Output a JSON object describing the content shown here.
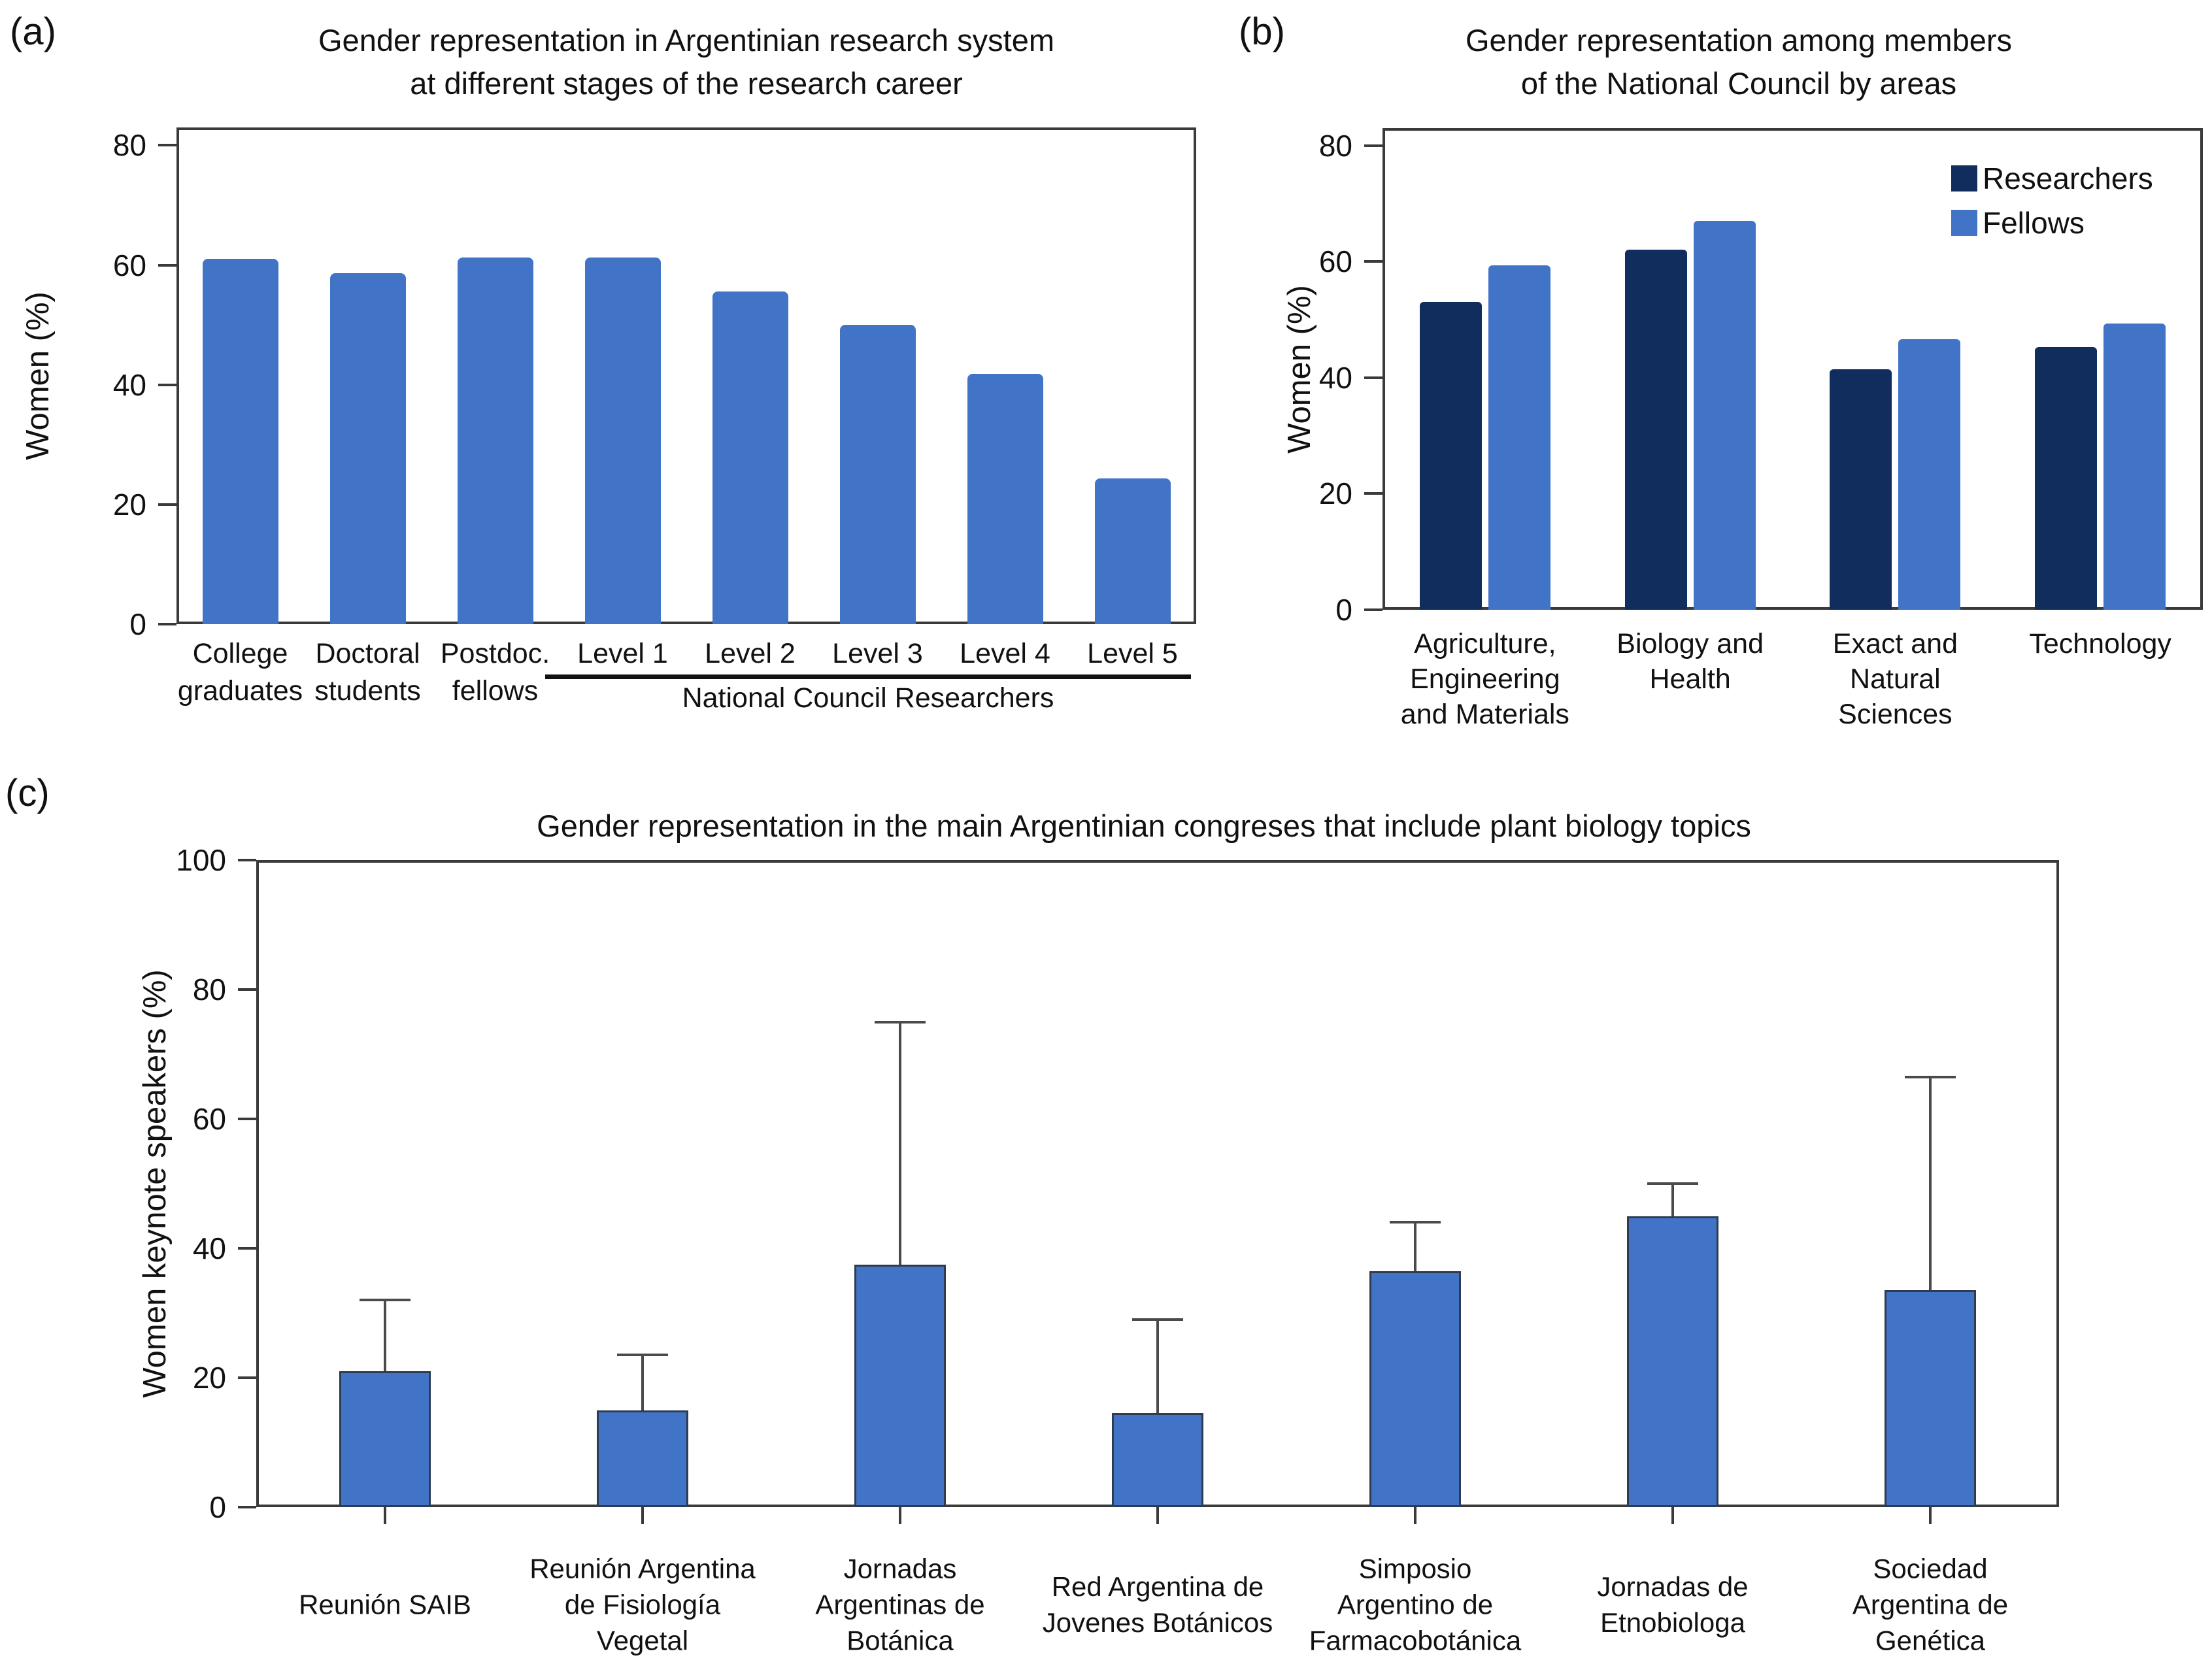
{
  "figure": {
    "panel_labels": {
      "a": "(a)",
      "b": "(b)",
      "c": "(c)"
    },
    "colors": {
      "bar_blue": "#4173C7",
      "bar_navy": "#112D5E",
      "axis": "#3A3A3A",
      "error_bar": "#4A4A4A",
      "bar_border_dark": "#2E3B50",
      "text": "#1A1A1A"
    }
  },
  "chart_data": [
    {
      "panel": "a",
      "type": "bar",
      "title_lines": [
        "Gender representation in Argentinian research system",
        "at different stages of the research career"
      ],
      "ylabel": "Women (%)",
      "ylim": [
        0,
        83
      ],
      "yticks": [
        0,
        20,
        40,
        60,
        80
      ],
      "grid": false,
      "categories": [
        [
          "College",
          "graduates"
        ],
        [
          "Doctoral",
          "students"
        ],
        [
          "Postdoc.",
          "fellows"
        ],
        [
          "Level 1"
        ],
        [
          "Level 2"
        ],
        [
          "Level 3"
        ],
        [
          "Level 4"
        ],
        [
          "Level 5"
        ]
      ],
      "values": [
        61,
        58.7,
        61.3,
        61.3,
        55.6,
        50,
        41.8,
        24.4
      ],
      "group_annotation": {
        "label": "National Council Researchers",
        "from_index": 3,
        "to_index": 7
      }
    },
    {
      "panel": "b",
      "type": "grouped-bar",
      "title_lines": [
        "Gender representation among members",
        "of the National Council by areas"
      ],
      "ylabel": "Women (%)",
      "ylim": [
        0,
        83
      ],
      "yticks": [
        0,
        20,
        40,
        60,
        80
      ],
      "grid": false,
      "legend_position": "top-right",
      "categories": [
        [
          "Agriculture,",
          "Engineering",
          "and Materials"
        ],
        [
          "Biology and",
          "Health"
        ],
        [
          "Exact and",
          "Natural",
          "Sciences"
        ],
        [
          "Technology"
        ]
      ],
      "series": [
        {
          "name": "Researchers",
          "values": [
            53,
            62,
            41.5,
            45.3
          ]
        },
        {
          "name": "Fellows",
          "values": [
            59.4,
            67,
            46.6,
            49.3
          ]
        }
      ]
    },
    {
      "panel": "c",
      "type": "bar",
      "title_lines": [
        "Gender representation in the main Argentinian congreses that include plant biology topics"
      ],
      "ylabel": "Women keynote speakers (%)",
      "ylim": [
        0,
        100
      ],
      "yticks": [
        0,
        20,
        40,
        60,
        80,
        100
      ],
      "grid": false,
      "categories": [
        [
          "Reunión SAIB"
        ],
        [
          "Reunión Argentina",
          "de Fisiología",
          "Vegetal"
        ],
        [
          "Jornadas",
          "Argentinas de",
          "Botánica"
        ],
        [
          "Red Argentina de",
          "Jovenes Botánicos"
        ],
        [
          "Simposio",
          "Argentino de",
          "Farmacobotánica"
        ],
        [
          "Jornadas de",
          "Etnobiologa"
        ],
        [
          "Sociedad",
          "Argentina de",
          "Genética"
        ]
      ],
      "values": [
        21,
        15,
        37.5,
        14.5,
        36.5,
        45,
        33.5
      ],
      "error_upper": [
        32,
        23.5,
        75,
        29,
        44,
        50,
        66.5
      ]
    }
  ]
}
